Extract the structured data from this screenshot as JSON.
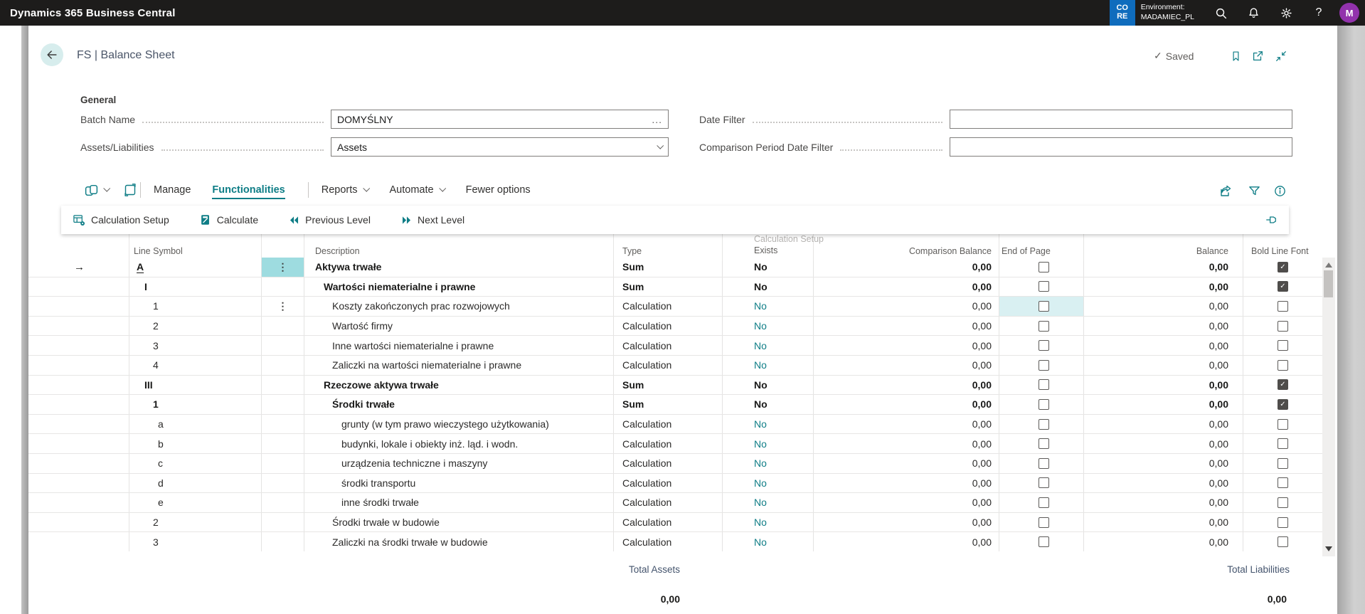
{
  "colors": {
    "accent": "#0e7d86",
    "env_badge_blue": "#0f6cbd",
    "avatar_purple": "#9232ac",
    "row_highlight_strong": "#9edce0",
    "cell_highlight_soft": "#d9f0f2"
  },
  "topbar": {
    "app_title": "Dynamics 365 Business Central",
    "env_badge_line1": "CO",
    "env_badge_line2": "RE",
    "environment_label": "Environment:",
    "environment_name": "MADAMIEC_PL",
    "avatar_initial": "M"
  },
  "page_header": {
    "title": "FS | Balance Sheet",
    "saved_check": "✓",
    "saved_label": "Saved"
  },
  "general": {
    "section_title": "General",
    "batch_name": {
      "label": "Batch Name",
      "value": "DOMYŚLNY",
      "assist_edit": "..."
    },
    "assets_liabilities": {
      "label": "Assets/Liabilities",
      "value": "Assets"
    },
    "date_filter": {
      "label": "Date Filter",
      "value": ""
    },
    "comparison_period": {
      "label": "Comparison Period Date Filter",
      "value": ""
    }
  },
  "toolbar": {
    "manage": "Manage",
    "functionalities": "Functionalities",
    "reports": "Reports",
    "automate": "Automate",
    "fewer_options": "Fewer options"
  },
  "actionbar": {
    "calculation_setup": "Calculation Setup",
    "calculate": "Calculate",
    "previous_level": "Previous Level",
    "next_level": "Next Level"
  },
  "table": {
    "headers": {
      "line_symbol": "Line Symbol",
      "description": "Description",
      "type": "Type",
      "calc_setup_exists_line1": "Calculation Setup",
      "calc_setup_exists_line2": "Exists",
      "comparison_balance": "Comparison Balance",
      "end_of_page": "End of Page",
      "balance": "Balance",
      "bold_line_font": "Bold Line Font"
    },
    "rows": [
      {
        "symbol": "A",
        "symbol_indent": 0,
        "description": "Aktywa trwałe",
        "desc_indent": 0,
        "bold": true,
        "type": "Sum",
        "calc_setup_exists": "No",
        "comparison_balance": "0,00",
        "end_of_page": false,
        "balance": "0,00",
        "bold_line_font": true,
        "active": true,
        "symbol_underline": true,
        "show_ellipsis": true,
        "ellipsis_highlight": true
      },
      {
        "symbol": "I",
        "symbol_indent": 1,
        "description": "Wartości niematerialne i prawne",
        "desc_indent": 1,
        "bold": true,
        "type": "Sum",
        "calc_setup_exists": "No",
        "comparison_balance": "0,00",
        "end_of_page": false,
        "balance": "0,00",
        "bold_line_font": true
      },
      {
        "symbol": "1",
        "symbol_indent": 2,
        "description": "Koszty zakończonych prac rozwojowych",
        "desc_indent": 2,
        "bold": false,
        "type": "Calculation",
        "calc_setup_exists": "No",
        "comparison_balance": "0,00",
        "end_of_page": false,
        "balance": "0,00",
        "bold_line_font": false,
        "show_ellipsis": true,
        "eop_highlight": true
      },
      {
        "symbol": "2",
        "symbol_indent": 2,
        "description": "Wartość firmy",
        "desc_indent": 2,
        "bold": false,
        "type": "Calculation",
        "calc_setup_exists": "No",
        "comparison_balance": "0,00",
        "end_of_page": false,
        "balance": "0,00",
        "bold_line_font": false
      },
      {
        "symbol": "3",
        "symbol_indent": 2,
        "description": "Inne wartości niematerialne i prawne",
        "desc_indent": 2,
        "bold": false,
        "type": "Calculation",
        "calc_setup_exists": "No",
        "comparison_balance": "0,00",
        "end_of_page": false,
        "balance": "0,00",
        "bold_line_font": false
      },
      {
        "symbol": "4",
        "symbol_indent": 2,
        "description": "Zaliczki na wartości niematerialne i prawne",
        "desc_indent": 2,
        "bold": false,
        "type": "Calculation",
        "calc_setup_exists": "No",
        "comparison_balance": "0,00",
        "end_of_page": false,
        "balance": "0,00",
        "bold_line_font": false
      },
      {
        "symbol": "III",
        "symbol_indent": 1,
        "description": "Rzeczowe aktywa trwałe",
        "desc_indent": 1,
        "bold": true,
        "type": "Sum",
        "calc_setup_exists": "No",
        "comparison_balance": "0,00",
        "end_of_page": false,
        "balance": "0,00",
        "bold_line_font": true
      },
      {
        "symbol": "1",
        "symbol_indent": 2,
        "description": "Środki trwałe",
        "desc_indent": 2,
        "bold": true,
        "type": "Sum",
        "calc_setup_exists": "No",
        "comparison_balance": "0,00",
        "end_of_page": false,
        "balance": "0,00",
        "bold_line_font": true
      },
      {
        "symbol": "a",
        "symbol_indent": 3,
        "description": "grunty (w tym prawo wieczystego użytkowania)",
        "desc_indent": 3,
        "bold": false,
        "type": "Calculation",
        "calc_setup_exists": "No",
        "comparison_balance": "0,00",
        "end_of_page": false,
        "balance": "0,00",
        "bold_line_font": false
      },
      {
        "symbol": "b",
        "symbol_indent": 3,
        "description": "budynki, lokale i obiekty inż. ląd. i wodn.",
        "desc_indent": 3,
        "bold": false,
        "type": "Calculation",
        "calc_setup_exists": "No",
        "comparison_balance": "0,00",
        "end_of_page": false,
        "balance": "0,00",
        "bold_line_font": false
      },
      {
        "symbol": "c",
        "symbol_indent": 3,
        "description": "urządzenia techniczne i maszyny",
        "desc_indent": 3,
        "bold": false,
        "type": "Calculation",
        "calc_setup_exists": "No",
        "comparison_balance": "0,00",
        "end_of_page": false,
        "balance": "0,00",
        "bold_line_font": false
      },
      {
        "symbol": "d",
        "symbol_indent": 3,
        "description": "środki transportu",
        "desc_indent": 3,
        "bold": false,
        "type": "Calculation",
        "calc_setup_exists": "No",
        "comparison_balance": "0,00",
        "end_of_page": false,
        "balance": "0,00",
        "bold_line_font": false
      },
      {
        "symbol": "e",
        "symbol_indent": 3,
        "description": "inne środki trwałe",
        "desc_indent": 3,
        "bold": false,
        "type": "Calculation",
        "calc_setup_exists": "No",
        "comparison_balance": "0,00",
        "end_of_page": false,
        "balance": "0,00",
        "bold_line_font": false
      },
      {
        "symbol": "2",
        "symbol_indent": 2,
        "description": "Środki trwałe w budowie",
        "desc_indent": 2,
        "bold": false,
        "type": "Calculation",
        "calc_setup_exists": "No",
        "comparison_balance": "0,00",
        "end_of_page": false,
        "balance": "0,00",
        "bold_line_font": false
      },
      {
        "symbol": "3",
        "symbol_indent": 2,
        "description": "Zaliczki na środki trwałe w budowie",
        "desc_indent": 2,
        "bold": false,
        "type": "Calculation",
        "calc_setup_exists": "No",
        "comparison_balance": "0,00",
        "end_of_page": false,
        "balance": "0,00",
        "bold_line_font": false
      }
    ]
  },
  "totals": {
    "assets_label": "Total Assets",
    "assets_value": "0,00",
    "liabilities_label": "Total Liabilities",
    "liabilities_value": "0,00"
  }
}
